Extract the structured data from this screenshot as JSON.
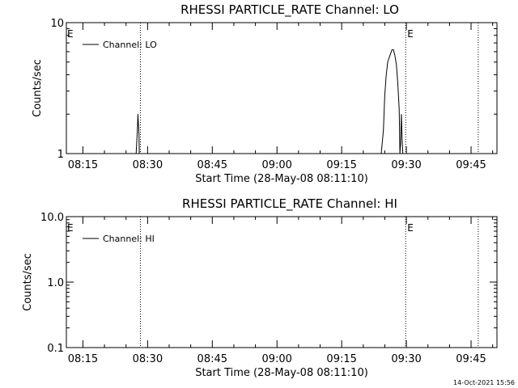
{
  "footer": {
    "timestamp": "14-Oct-2021 15:56"
  },
  "chart_data": [
    {
      "type": "line",
      "title": "RHESSI PARTICLE_RATE Channel: LO",
      "xlabel": "Start Time (28-May-08 08:11:10)",
      "ylabel": "Counts/sec",
      "yscale": "log",
      "xlim": [
        "08:11:10",
        "09:51:00"
      ],
      "ylim": [
        1,
        10
      ],
      "x_ticks": [
        "08:15",
        "08:30",
        "08:45",
        "09:00",
        "09:15",
        "09:30",
        "09:45"
      ],
      "y_ticks": [
        "1",
        "10"
      ],
      "legend": {
        "placement": "top-left",
        "entries": [
          "Channel: LO"
        ]
      },
      "event_lines": [
        {
          "time": "08:28:20",
          "label": ""
        },
        {
          "time": "09:29:50",
          "label": "E"
        },
        {
          "time": "09:46:40",
          "label": ""
        }
      ],
      "start_marker": "E",
      "series": [
        {
          "name": "Channel: LO",
          "x": [
            "08:11:10",
            "08:27:20",
            "08:27:40",
            "08:27:45",
            "08:28:00",
            "08:28:05",
            "08:28:20",
            "09:24:10",
            "09:24:40",
            "09:25:00",
            "09:25:20",
            "09:25:40",
            "09:26:00",
            "09:26:20",
            "09:26:40",
            "09:27:00",
            "09:27:20",
            "09:27:40",
            "09:28:00",
            "09:28:20",
            "09:28:30",
            "09:28:40",
            "09:28:50",
            "09:29:00",
            "09:29:10",
            "09:29:20",
            "09:29:30",
            "09:51:00"
          ],
          "values": [
            1,
            1,
            1.6,
            2.0,
            1.4,
            1,
            1,
            1,
            1.5,
            2.8,
            4.0,
            5.0,
            5.4,
            5.8,
            6.2,
            6.2,
            5.6,
            4.8,
            3.5,
            2.2,
            1,
            1.2,
            2.0,
            1.3,
            1,
            1,
            1,
            1
          ]
        }
      ]
    },
    {
      "type": "line",
      "title": "RHESSI PARTICLE_RATE Channel: HI",
      "xlabel": "Start Time (28-May-08 08:11:10)",
      "ylabel": "Counts/sec",
      "yscale": "log",
      "xlim": [
        "08:11:10",
        "09:51:00"
      ],
      "ylim": [
        0.1,
        10
      ],
      "x_ticks": [
        "08:15",
        "08:30",
        "08:45",
        "09:00",
        "09:15",
        "09:30",
        "09:45"
      ],
      "y_ticks": [
        "0.1",
        "1.0",
        "10.0"
      ],
      "legend": {
        "placement": "top-left",
        "entries": [
          "Channel: HI"
        ]
      },
      "event_lines": [
        {
          "time": "08:28:20",
          "label": ""
        },
        {
          "time": "09:29:50",
          "label": "E"
        },
        {
          "time": "09:46:40",
          "label": ""
        }
      ],
      "start_marker": "E",
      "series": [
        {
          "name": "Channel: HI",
          "x": [],
          "values": []
        }
      ]
    }
  ]
}
